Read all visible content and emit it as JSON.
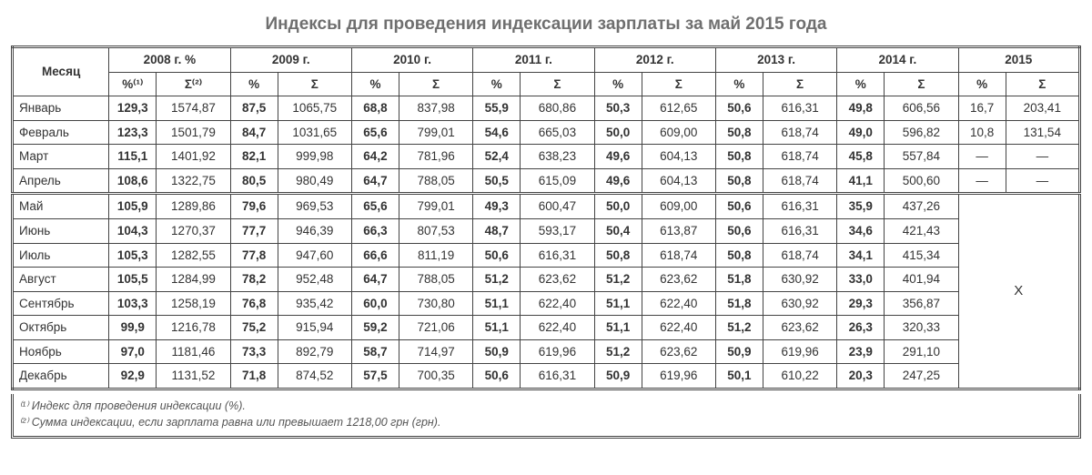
{
  "title": "Индексы для проведения индексации зарплаты за май 2015 года",
  "header": {
    "month_label": "Месяц",
    "year_2008": "2008 г. %",
    "year_2009": "2009 г.",
    "year_2010": "2010 г.",
    "year_2011": "2011 г.",
    "year_2012": "2012 г.",
    "year_2013": "2013 г.",
    "year_2014": "2014 г.",
    "year_2015": "2015",
    "pct_label": "%",
    "sum_label": "Σ",
    "pct_2008": "%⁽¹⁾",
    "sum_2008": "Σ⁽²⁾"
  },
  "months": [
    "Январь",
    "Февраль",
    "Март",
    "Апрель",
    "Май",
    "Июнь",
    "Июль",
    "Август",
    "Сентябрь",
    "Октябрь",
    "Ноябрь",
    "Декабрь"
  ],
  "data": {
    "y2008": {
      "pct": [
        "129,3",
        "123,3",
        "115,1",
        "108,6",
        "105,9",
        "104,3",
        "105,3",
        "105,5",
        "103,3",
        "99,9",
        "97,0",
        "92,9"
      ],
      "sum": [
        "1574,87",
        "1501,79",
        "1401,92",
        "1322,75",
        "1289,86",
        "1270,37",
        "1282,55",
        "1284,99",
        "1258,19",
        "1216,78",
        "1181,46",
        "1131,52"
      ]
    },
    "y2009": {
      "pct": [
        "87,5",
        "84,7",
        "82,1",
        "80,5",
        "79,6",
        "77,7",
        "77,8",
        "78,2",
        "76,8",
        "75,2",
        "73,3",
        "71,8"
      ],
      "sum": [
        "1065,75",
        "1031,65",
        "999,98",
        "980,49",
        "969,53",
        "946,39",
        "947,60",
        "952,48",
        "935,42",
        "915,94",
        "892,79",
        "874,52"
      ]
    },
    "y2010": {
      "pct": [
        "68,8",
        "65,6",
        "64,2",
        "64,7",
        "65,6",
        "66,3",
        "66,6",
        "64,7",
        "60,0",
        "59,2",
        "58,7",
        "57,5"
      ],
      "sum": [
        "837,98",
        "799,01",
        "781,96",
        "788,05",
        "799,01",
        "807,53",
        "811,19",
        "788,05",
        "730,80",
        "721,06",
        "714,97",
        "700,35"
      ]
    },
    "y2011": {
      "pct": [
        "55,9",
        "54,6",
        "52,4",
        "50,5",
        "49,3",
        "48,7",
        "50,6",
        "51,2",
        "51,1",
        "51,1",
        "50,9",
        "50,6"
      ],
      "sum": [
        "680,86",
        "665,03",
        "638,23",
        "615,09",
        "600,47",
        "593,17",
        "616,31",
        "623,62",
        "622,40",
        "622,40",
        "619,96",
        "616,31"
      ]
    },
    "y2012": {
      "pct": [
        "50,3",
        "50,0",
        "49,6",
        "49,6",
        "50,0",
        "50,4",
        "50,8",
        "51,2",
        "51,1",
        "51,1",
        "51,2",
        "50,9"
      ],
      "sum": [
        "612,65",
        "609,00",
        "604,13",
        "604,13",
        "609,00",
        "613,87",
        "618,74",
        "623,62",
        "622,40",
        "622,40",
        "623,62",
        "619,96"
      ]
    },
    "y2013": {
      "pct": [
        "50,6",
        "50,8",
        "50,8",
        "50,8",
        "50,6",
        "50,6",
        "50,8",
        "51,8",
        "51,8",
        "51,2",
        "50,9",
        "50,1"
      ],
      "sum": [
        "616,31",
        "618,74",
        "618,74",
        "618,74",
        "616,31",
        "616,31",
        "618,74",
        "630,92",
        "630,92",
        "623,62",
        "619,96",
        "610,22"
      ]
    },
    "y2014": {
      "pct": [
        "49,8",
        "49,0",
        "45,8",
        "41,1",
        "35,9",
        "34,6",
        "34,1",
        "33,0",
        "29,3",
        "26,3",
        "23,9",
        "20,3"
      ],
      "sum": [
        "606,56",
        "596,82",
        "557,84",
        "500,60",
        "437,26",
        "421,43",
        "415,34",
        "401,94",
        "356,87",
        "320,33",
        "291,10",
        "247,25"
      ]
    },
    "y2015": {
      "pct": [
        "16,7",
        "10,8",
        "—",
        "—"
      ],
      "sum": [
        "203,41",
        "131,54",
        "—",
        "—"
      ]
    }
  },
  "big_x": "Х",
  "footnotes": {
    "f1": "⁽¹⁾ Индекс для проведения индексации (%).",
    "f2": "⁽²⁾ Сумма индексации, если зарплата равна или превышает 1218,00 грн (грн)."
  },
  "style": {
    "title_color": "#6f6f6f",
    "border_color": "#444444",
    "background": "#ffffff",
    "font_size_cell": 13.5,
    "font_size_title": 19
  }
}
